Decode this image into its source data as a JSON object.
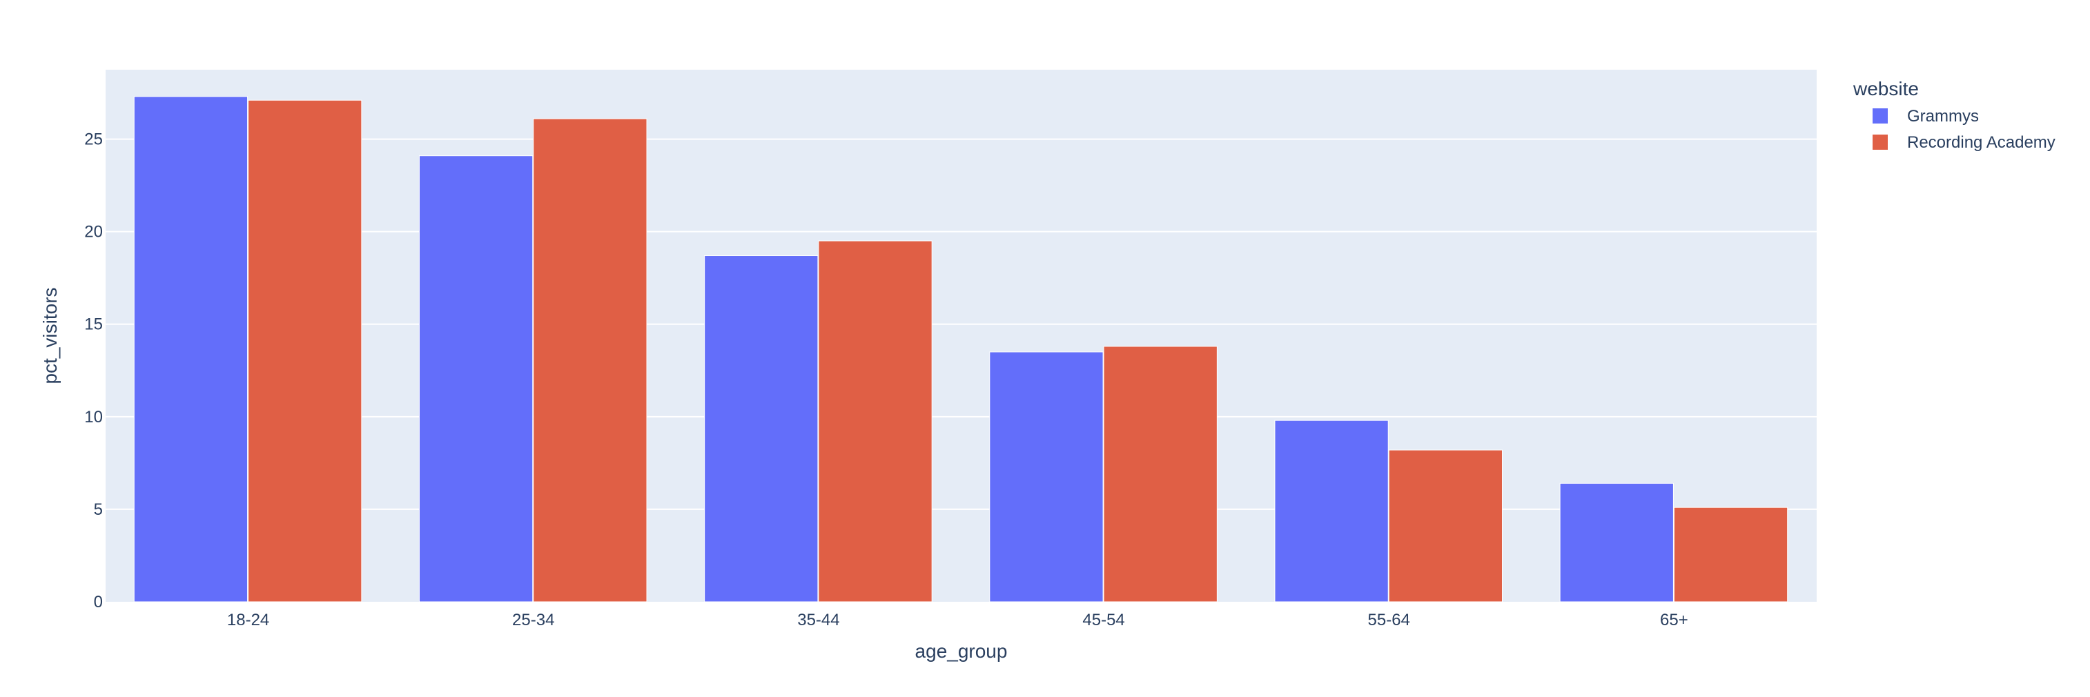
{
  "chart_data": {
    "type": "bar",
    "barmode": "group",
    "categories": [
      "18-24",
      "25-34",
      "35-44",
      "45-54",
      "55-64",
      "65+"
    ],
    "series": [
      {
        "name": "Grammys",
        "color": "#636efa",
        "values": [
          27.3,
          24.1,
          18.7,
          13.5,
          9.8,
          6.4
        ]
      },
      {
        "name": "Recording Academy",
        "color": "#e05f45",
        "values": [
          27.1,
          26.1,
          19.5,
          13.8,
          8.2,
          5.1
        ]
      }
    ],
    "xlabel": "age_group",
    "ylabel": "pct_visitors",
    "ylim": [
      0,
      28.75
    ],
    "yticks": [
      0,
      5,
      10,
      15,
      20,
      25
    ],
    "legend": {
      "title": "website",
      "placement": "top-right"
    },
    "grid": true,
    "plot_background": "#e5ecf6",
    "gridline_color": "#ffffff",
    "text_color": "#2a3f5f"
  }
}
